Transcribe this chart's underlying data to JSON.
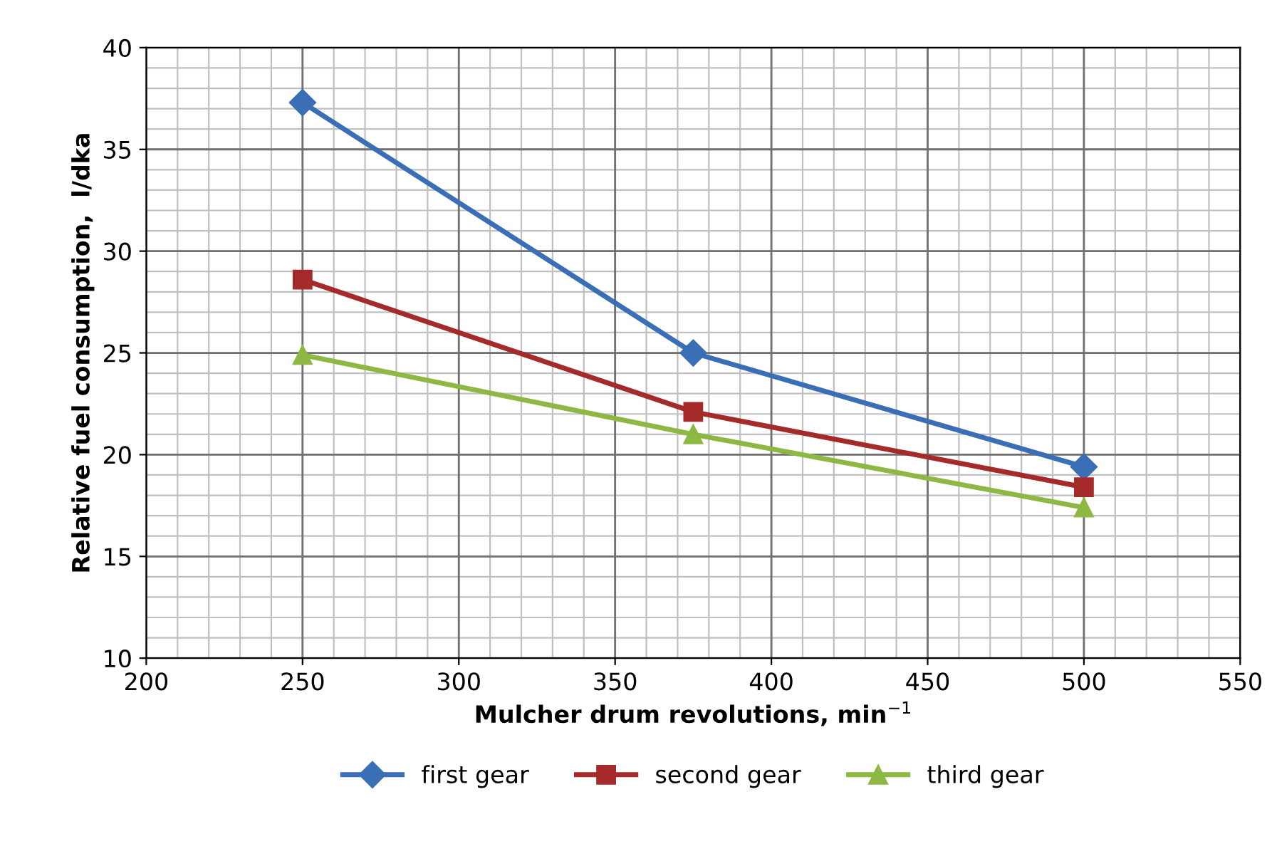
{
  "chart_data": {
    "type": "line",
    "xlabel": "Mulcher drum revolutions, min$^{−1}$",
    "ylabel": "Relative fuel consumption,  l/dka",
    "x": [
      250,
      375,
      500
    ],
    "series": [
      {
        "name": "first gear",
        "color": "#3a6fb5",
        "marker": "diamond",
        "values": [
          37.3,
          25.0,
          19.4
        ]
      },
      {
        "name": "second gear",
        "color": "#a52a2a",
        "marker": "square",
        "values": [
          28.6,
          22.1,
          18.4
        ]
      },
      {
        "name": "third gear",
        "color": "#8db843",
        "marker": "triangle",
        "values": [
          24.9,
          21.0,
          17.4
        ]
      }
    ],
    "xlim": [
      200,
      550
    ],
    "xticks": [
      200,
      250,
      300,
      350,
      400,
      450,
      500,
      550
    ],
    "ylim": [
      10,
      40
    ],
    "yticks": [
      10,
      15,
      20,
      25,
      30,
      35,
      40
    ],
    "grid": true,
    "legend": "bottom",
    "line_style": "solid"
  }
}
